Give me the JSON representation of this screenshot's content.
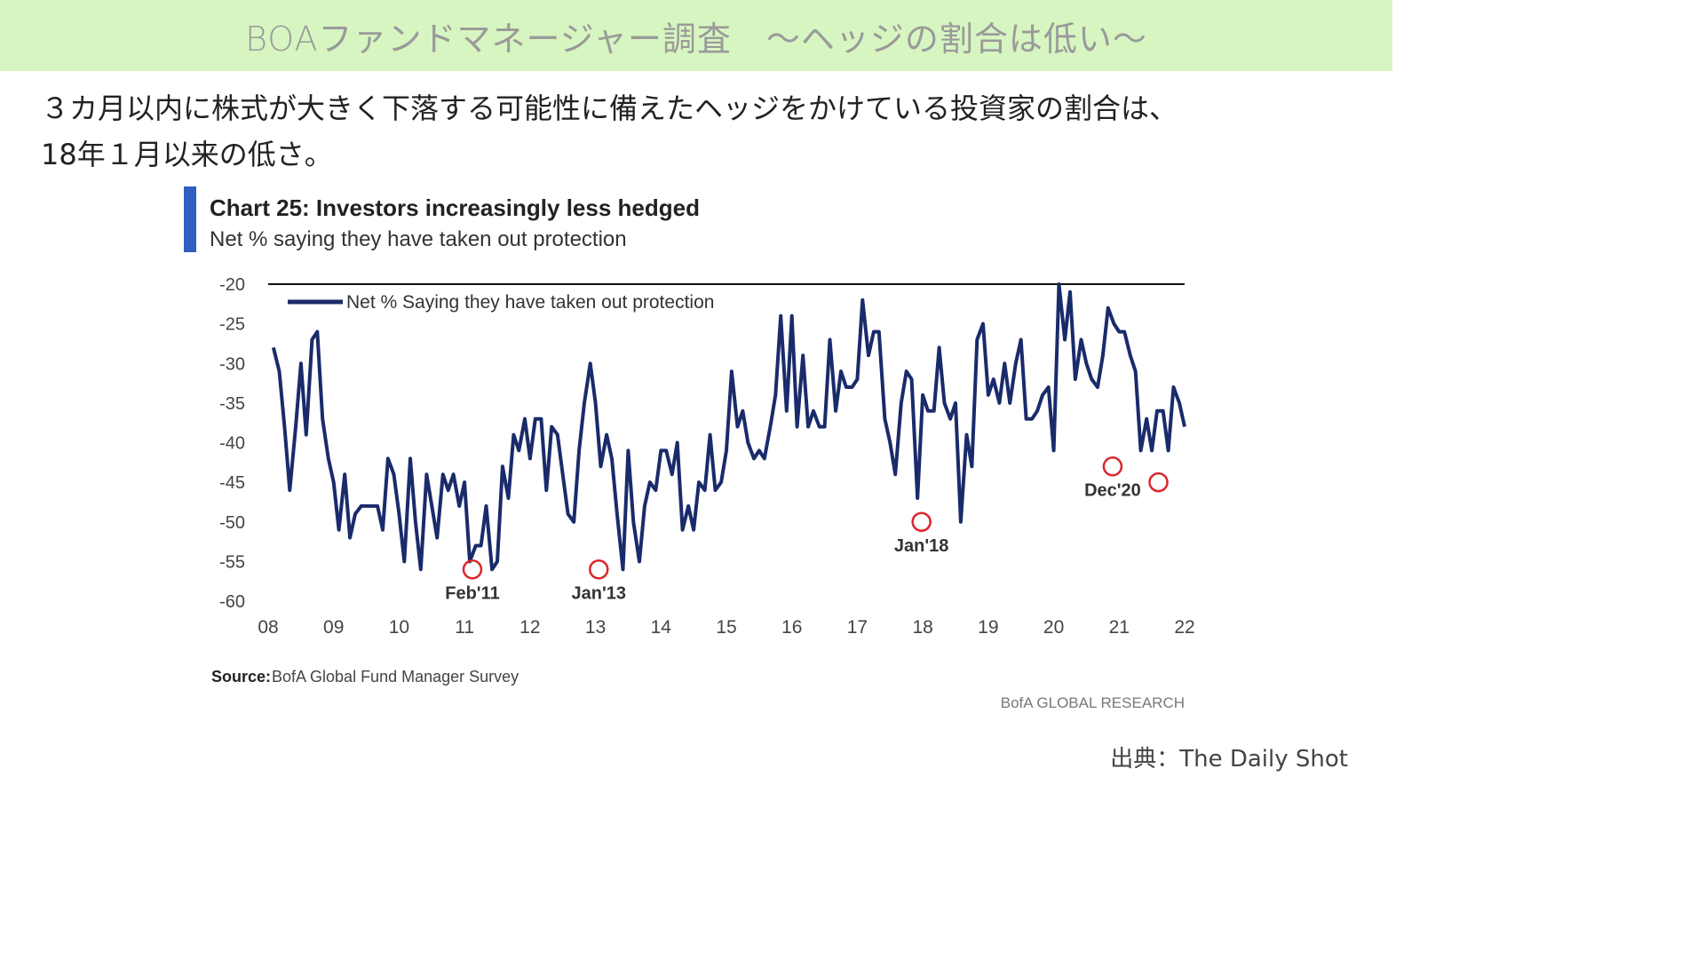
{
  "banner": {
    "title": "BOAファンドマネージャー調査　～ヘッジの割合は低い～"
  },
  "lead": {
    "line1": "３カ月以内に株式が大きく下落する可能性に備えたヘッジをかけている投資家の割合は、",
    "line2": "18年１月以来の低さ。"
  },
  "credit": "出典：The Daily Shot",
  "colors": {
    "banner_bg": "#d7f5c0",
    "series_line": "#1a2b6b",
    "title_bar": "#2e5fc1",
    "marker": "#d9262c"
  },
  "chart_data": {
    "type": "line",
    "title": "Chart 25: Investors increasingly less hedged",
    "subtitle": "Net % saying they have taken out protection",
    "xlabel": "",
    "ylabel": "",
    "x_range": [
      2008.0,
      2022.0
    ],
    "ylim": [
      -60,
      -20
    ],
    "y_ticks": [
      -20,
      -25,
      -30,
      -35,
      -40,
      -45,
      -50,
      -55,
      -60
    ],
    "x_ticks": [
      {
        "label": "08",
        "x": 2008
      },
      {
        "label": "09",
        "x": 2009
      },
      {
        "label": "10",
        "x": 2010
      },
      {
        "label": "11",
        "x": 2011
      },
      {
        "label": "12",
        "x": 2012
      },
      {
        "label": "13",
        "x": 2013
      },
      {
        "label": "14",
        "x": 2014
      },
      {
        "label": "15",
        "x": 2015
      },
      {
        "label": "16",
        "x": 2016
      },
      {
        "label": "17",
        "x": 2017
      },
      {
        "label": "18",
        "x": 2018
      },
      {
        "label": "19",
        "x": 2019
      },
      {
        "label": "20",
        "x": 2020
      },
      {
        "label": "21",
        "x": 2021
      },
      {
        "label": "22",
        "x": 2022
      }
    ],
    "reference_line": -20,
    "legend": "top-left",
    "series": [
      {
        "name": "Net % Saying they have taken out protection",
        "points": [
          [
            2008.08,
            -28
          ],
          [
            2008.17,
            -31
          ],
          [
            2008.25,
            -38
          ],
          [
            2008.33,
            -46
          ],
          [
            2008.42,
            -38
          ],
          [
            2008.5,
            -30
          ],
          [
            2008.58,
            -39
          ],
          [
            2008.67,
            -27
          ],
          [
            2008.75,
            -26
          ],
          [
            2008.83,
            -37
          ],
          [
            2008.92,
            -42
          ],
          [
            2009.0,
            -45
          ],
          [
            2009.08,
            -51
          ],
          [
            2009.17,
            -44
          ],
          [
            2009.25,
            -52
          ],
          [
            2009.33,
            -49
          ],
          [
            2009.42,
            -48
          ],
          [
            2009.5,
            -48
          ],
          [
            2009.58,
            -48
          ],
          [
            2009.67,
            -48
          ],
          [
            2009.75,
            -51
          ],
          [
            2009.83,
            -42
          ],
          [
            2009.92,
            -44
          ],
          [
            2010.0,
            -49
          ],
          [
            2010.08,
            -55
          ],
          [
            2010.17,
            -42
          ],
          [
            2010.25,
            -50
          ],
          [
            2010.33,
            -56
          ],
          [
            2010.42,
            -44
          ],
          [
            2010.5,
            -48
          ],
          [
            2010.58,
            -52
          ],
          [
            2010.67,
            -44
          ],
          [
            2010.75,
            -46
          ],
          [
            2010.83,
            -44
          ],
          [
            2010.92,
            -48
          ],
          [
            2011.0,
            -45
          ],
          [
            2011.08,
            -55
          ],
          [
            2011.17,
            -53
          ],
          [
            2011.25,
            -53
          ],
          [
            2011.33,
            -48
          ],
          [
            2011.42,
            -56
          ],
          [
            2011.5,
            -55
          ],
          [
            2011.58,
            -43
          ],
          [
            2011.67,
            -47
          ],
          [
            2011.75,
            -39
          ],
          [
            2011.83,
            -41
          ],
          [
            2011.92,
            -37
          ],
          [
            2012.0,
            -42
          ],
          [
            2012.08,
            -37
          ],
          [
            2012.17,
            -37
          ],
          [
            2012.25,
            -46
          ],
          [
            2012.33,
            -38
          ],
          [
            2012.42,
            -39
          ],
          [
            2012.5,
            -44
          ],
          [
            2012.58,
            -49
          ],
          [
            2012.67,
            -50
          ],
          [
            2012.75,
            -41
          ],
          [
            2012.83,
            -35
          ],
          [
            2012.92,
            -30
          ],
          [
            2013.0,
            -35
          ],
          [
            2013.08,
            -43
          ],
          [
            2013.17,
            -39
          ],
          [
            2013.25,
            -42
          ],
          [
            2013.33,
            -49
          ],
          [
            2013.42,
            -56
          ],
          [
            2013.5,
            -41
          ],
          [
            2013.58,
            -50
          ],
          [
            2013.67,
            -55
          ],
          [
            2013.75,
            -48
          ],
          [
            2013.83,
            -45
          ],
          [
            2013.92,
            -46
          ],
          [
            2014.0,
            -41
          ],
          [
            2014.08,
            -41
          ],
          [
            2014.17,
            -44
          ],
          [
            2014.25,
            -40
          ],
          [
            2014.33,
            -51
          ],
          [
            2014.42,
            -48
          ],
          [
            2014.5,
            -51
          ],
          [
            2014.58,
            -45
          ],
          [
            2014.67,
            -46
          ],
          [
            2014.75,
            -39
          ],
          [
            2014.83,
            -46
          ],
          [
            2014.92,
            -45
          ],
          [
            2015.0,
            -41
          ],
          [
            2015.08,
            -31
          ],
          [
            2015.17,
            -38
          ],
          [
            2015.25,
            -36
          ],
          [
            2015.33,
            -40
          ],
          [
            2015.42,
            -42
          ],
          [
            2015.5,
            -41
          ],
          [
            2015.58,
            -42
          ],
          [
            2015.67,
            -38
          ],
          [
            2015.75,
            -34
          ],
          [
            2015.83,
            -24
          ],
          [
            2015.92,
            -36
          ],
          [
            2016.0,
            -24
          ],
          [
            2016.08,
            -38
          ],
          [
            2016.17,
            -29
          ],
          [
            2016.25,
            -38
          ],
          [
            2016.33,
            -36
          ],
          [
            2016.42,
            -38
          ],
          [
            2016.5,
            -38
          ],
          [
            2016.58,
            -27
          ],
          [
            2016.67,
            -36
          ],
          [
            2016.75,
            -31
          ],
          [
            2016.83,
            -33
          ],
          [
            2016.92,
            -33
          ],
          [
            2017.0,
            -32
          ],
          [
            2017.08,
            -22
          ],
          [
            2017.17,
            -29
          ],
          [
            2017.25,
            -26
          ],
          [
            2017.33,
            -26
          ],
          [
            2017.42,
            -37
          ],
          [
            2017.5,
            -40
          ],
          [
            2017.58,
            -44
          ],
          [
            2017.67,
            -35
          ],
          [
            2017.75,
            -31
          ],
          [
            2017.83,
            -32
          ],
          [
            2017.92,
            -47
          ],
          [
            2018.0,
            -34
          ],
          [
            2018.08,
            -36
          ],
          [
            2018.17,
            -36
          ],
          [
            2018.25,
            -28
          ],
          [
            2018.33,
            -35
          ],
          [
            2018.42,
            -37
          ],
          [
            2018.5,
            -35
          ],
          [
            2018.58,
            -50
          ],
          [
            2018.67,
            -39
          ],
          [
            2018.75,
            -43
          ],
          [
            2018.83,
            -27
          ],
          [
            2018.92,
            -25
          ],
          [
            2019.0,
            -34
          ],
          [
            2019.08,
            -32
          ],
          [
            2019.17,
            -35
          ],
          [
            2019.25,
            -30
          ],
          [
            2019.33,
            -35
          ],
          [
            2019.42,
            -30
          ],
          [
            2019.5,
            -27
          ],
          [
            2019.58,
            -37
          ],
          [
            2019.67,
            -37
          ],
          [
            2019.75,
            -36
          ],
          [
            2019.83,
            -34
          ],
          [
            2019.92,
            -33
          ],
          [
            2020.0,
            -41
          ],
          [
            2020.08,
            -20
          ],
          [
            2020.17,
            -27
          ],
          [
            2020.25,
            -21
          ],
          [
            2020.33,
            -32
          ],
          [
            2020.42,
            -27
          ],
          [
            2020.5,
            -30
          ],
          [
            2020.58,
            -32
          ],
          [
            2020.67,
            -33
          ],
          [
            2020.75,
            -29
          ],
          [
            2020.83,
            -23
          ],
          [
            2020.92,
            -25
          ],
          [
            2021.0,
            -26
          ],
          [
            2021.08,
            -26
          ],
          [
            2021.17,
            -29
          ],
          [
            2021.25,
            -31
          ],
          [
            2021.33,
            -41
          ],
          [
            2021.42,
            -37
          ],
          [
            2021.5,
            -41
          ],
          [
            2021.58,
            -36
          ],
          [
            2021.67,
            -36
          ],
          [
            2021.75,
            -41
          ],
          [
            2021.83,
            -33
          ],
          [
            2021.92,
            -35
          ],
          [
            2022.0,
            -38
          ]
        ]
      }
    ],
    "annotations": [
      {
        "label": "Feb'11",
        "x": 2011.12,
        "y": -56
      },
      {
        "label": "Jan'13",
        "x": 2013.05,
        "y": -56
      },
      {
        "label": "Jan'18",
        "x": 2017.98,
        "y": -50
      },
      {
        "label": "Dec'20",
        "x": 2020.9,
        "y": -43
      },
      {
        "label": "",
        "x": 2021.6,
        "y": -45
      }
    ],
    "source_label": "Source:",
    "source_text": "BofA Global Fund Manager Survey",
    "brand": "BofA GLOBAL RESEARCH"
  }
}
